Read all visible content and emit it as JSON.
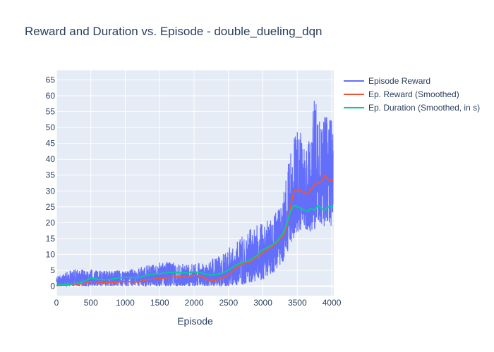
{
  "chart_data": {
    "type": "line",
    "title": "Reward and Duration vs. Episode - double_dueling_dqn",
    "xlabel": "Episode",
    "ylabel": "",
    "xlim": [
      0,
      4030
    ],
    "ylim": [
      -3,
      68
    ],
    "x_ticks": [
      0,
      500,
      1000,
      1500,
      2000,
      2500,
      3000,
      3500,
      4000
    ],
    "y_ticks": [
      0,
      5,
      10,
      15,
      20,
      25,
      30,
      35,
      40,
      45,
      50,
      55,
      60,
      65
    ],
    "grid": true,
    "legend_position": "top-right",
    "series": [
      {
        "name": "Episode Reward",
        "color": "#636efa",
        "envelope_x": [
          0,
          200,
          400,
          600,
          800,
          1000,
          1200,
          1400,
          1600,
          1800,
          2000,
          2200,
          2400,
          2600,
          2800,
          3000,
          3100,
          3200,
          3300,
          3400,
          3500,
          3600,
          3700,
          3760,
          3800,
          3900,
          4000,
          4020
        ],
        "envelope_low": [
          0,
          0,
          0,
          0,
          0,
          0,
          0,
          0,
          0,
          0,
          0,
          0,
          0,
          0,
          1,
          2,
          3,
          5,
          8,
          12,
          17,
          18,
          17,
          18,
          20,
          18,
          19,
          20
        ],
        "envelope_high": [
          3,
          5,
          6,
          5,
          5,
          5,
          6,
          7,
          8,
          7,
          7,
          8,
          10,
          14,
          18,
          20,
          22,
          25,
          30,
          44,
          50,
          47,
          48,
          65,
          52,
          55,
          53,
          49
        ]
      },
      {
        "name": "Ep. Reward (Smoothed)",
        "color": "#ef553b",
        "x": [
          0,
          100,
          200,
          300,
          400,
          500,
          600,
          700,
          800,
          900,
          1000,
          1100,
          1200,
          1300,
          1400,
          1500,
          1600,
          1700,
          1800,
          1900,
          2000,
          2100,
          2200,
          2300,
          2400,
          2500,
          2600,
          2700,
          2800,
          2900,
          3000,
          3100,
          3200,
          3300,
          3350,
          3400,
          3450,
          3500,
          3600,
          3650,
          3700,
          3750,
          3800,
          3850,
          3900,
          3950,
          4000,
          4020
        ],
        "y": [
          0.2,
          0.3,
          0.5,
          0.6,
          0.8,
          1.5,
          1.3,
          1.2,
          1.2,
          1.3,
          1.5,
          1.4,
          1.3,
          2.0,
          2.2,
          2.4,
          2.6,
          2.9,
          3.0,
          2.8,
          3.5,
          3.2,
          2.0,
          1.8,
          2.5,
          3.5,
          5.5,
          7.0,
          7.5,
          9.0,
          10.5,
          12.0,
          13.5,
          16.0,
          19.0,
          25.0,
          30.0,
          30.5,
          29.5,
          29.0,
          30.5,
          32.0,
          32.5,
          33.0,
          35.0,
          33.5,
          33.0,
          33.5
        ]
      },
      {
        "name": "Ep. Duration (Smoothed, in s)",
        "color": "#00cc96",
        "x": [
          0,
          100,
          200,
          300,
          400,
          500,
          600,
          700,
          800,
          900,
          1000,
          1100,
          1200,
          1300,
          1400,
          1500,
          1600,
          1700,
          1800,
          1900,
          2000,
          2100,
          2200,
          2300,
          2400,
          2500,
          2600,
          2700,
          2800,
          2900,
          3000,
          3100,
          3200,
          3300,
          3350,
          3400,
          3450,
          3500,
          3600,
          3650,
          3700,
          3750,
          3800,
          3850,
          3900,
          3950,
          4000,
          4020
        ],
        "y": [
          0.4,
          0.5,
          0.6,
          0.9,
          1.5,
          2.5,
          2.2,
          2.0,
          2.2,
          2.6,
          2.8,
          2.7,
          2.7,
          3.4,
          3.8,
          4.0,
          4.2,
          4.3,
          4.3,
          4.2,
          4.5,
          4.2,
          3.5,
          3.6,
          4.0,
          5.0,
          6.5,
          7.5,
          8.0,
          9.5,
          11.5,
          12.5,
          14.0,
          17.0,
          20.0,
          23.5,
          25.5,
          25.0,
          24.0,
          23.5,
          24.5,
          24.0,
          25.5,
          24.5,
          24.0,
          25.0,
          25.5,
          25.0
        ]
      }
    ]
  }
}
